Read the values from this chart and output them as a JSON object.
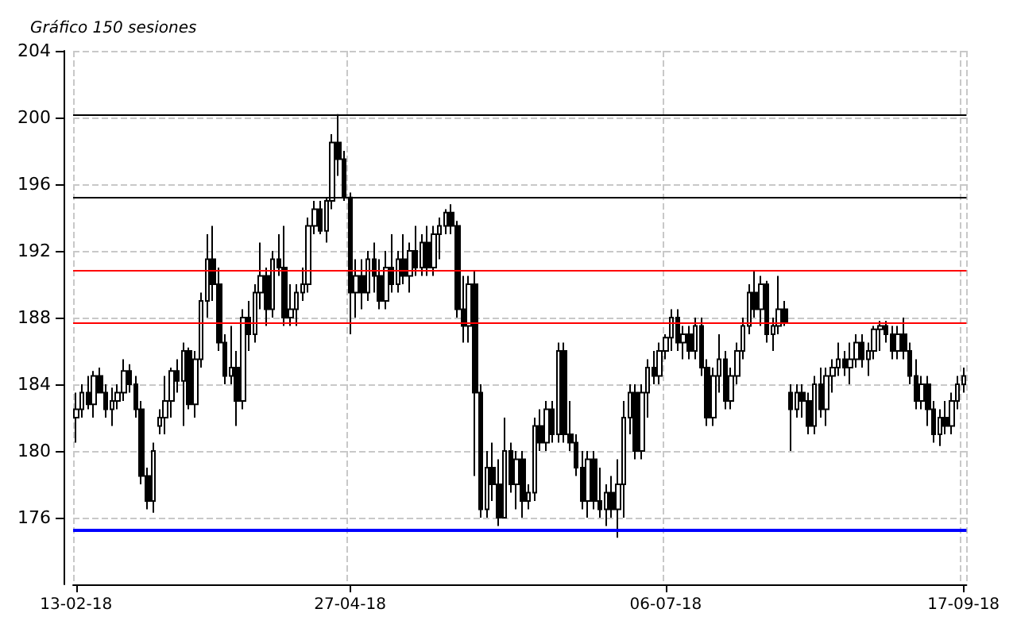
{
  "chart_data": {
    "type": "candlestick",
    "subtitle": "Gráfico 150 sesiones",
    "categories": [
      "13-02-18",
      null,
      null,
      null,
      null,
      null,
      null,
      null,
      null,
      null,
      null,
      null,
      null,
      null,
      null,
      null,
      null,
      null,
      null,
      null,
      null,
      null,
      null,
      null,
      null,
      null,
      null,
      null,
      null,
      null,
      null,
      null,
      null,
      null,
      null,
      null,
      null,
      null,
      null,
      null,
      null,
      null,
      null,
      null,
      null,
      null,
      "27-04-18",
      null,
      null,
      null,
      null,
      null,
      null,
      null,
      null,
      null,
      null,
      null,
      null,
      null,
      null,
      null,
      null,
      null,
      null,
      null,
      null,
      null,
      null,
      null,
      null,
      null,
      null,
      null,
      null,
      null,
      null,
      null,
      null,
      null,
      null,
      null,
      null,
      null,
      null,
      null,
      null,
      null,
      null,
      null,
      null,
      null,
      null,
      null,
      null,
      null,
      null,
      null,
      null,
      "06-07-18",
      null,
      null,
      null,
      null,
      null,
      null,
      null,
      null,
      null,
      null,
      null,
      null,
      null,
      null,
      null,
      null,
      null,
      null,
      null,
      null,
      null,
      null,
      null,
      null,
      null,
      null,
      null,
      null,
      null,
      null,
      null,
      null,
      null,
      null,
      null,
      null,
      null,
      null,
      null,
      null,
      null,
      null,
      null,
      null,
      null,
      null,
      null,
      null,
      null,
      "17-09-18"
    ],
    "ohlc": [
      [
        182.0,
        183.5,
        180.5,
        182.5
      ],
      [
        182.5,
        184.0,
        182.0,
        183.5
      ],
      [
        183.5,
        184.5,
        182.5,
        182.8
      ],
      [
        182.8,
        184.8,
        182.0,
        184.5
      ],
      [
        184.5,
        185.0,
        183.5,
        183.5
      ],
      [
        183.5,
        184.0,
        182.0,
        182.5
      ],
      [
        182.5,
        183.8,
        181.5,
        183.0
      ],
      [
        183.0,
        184.0,
        182.5,
        183.5
      ],
      [
        183.5,
        185.5,
        183.0,
        184.8
      ],
      [
        184.8,
        185.2,
        183.5,
        184.0
      ],
      [
        184.0,
        184.5,
        182.0,
        182.5
      ],
      [
        182.5,
        183.0,
        178.0,
        178.5
      ],
      [
        178.5,
        179.0,
        176.5,
        177.0
      ],
      [
        177.0,
        180.5,
        176.3,
        180.0
      ],
      [
        181.5,
        182.5,
        181.0,
        182.0
      ],
      [
        182.0,
        184.5,
        181.0,
        183.0
      ],
      [
        183.0,
        185.0,
        182.0,
        184.8
      ],
      [
        184.8,
        185.5,
        183.5,
        184.2
      ],
      [
        184.2,
        186.5,
        181.5,
        186.0
      ],
      [
        186.0,
        186.2,
        182.5,
        182.8
      ],
      [
        182.8,
        186.0,
        182.0,
        185.5
      ],
      [
        185.5,
        189.5,
        185.0,
        189.0
      ],
      [
        189.0,
        193.0,
        188.0,
        191.5
      ],
      [
        191.5,
        193.5,
        189.0,
        190.0
      ],
      [
        190.0,
        191.0,
        186.0,
        186.5
      ],
      [
        186.5,
        187.0,
        184.0,
        184.5
      ],
      [
        184.5,
        187.5,
        184.0,
        185.0
      ],
      [
        185.0,
        186.0,
        181.5,
        183.0
      ],
      [
        183.0,
        188.5,
        182.5,
        188.0
      ],
      [
        188.0,
        189.0,
        186.0,
        187.0
      ],
      [
        187.0,
        190.0,
        186.5,
        189.5
      ],
      [
        189.5,
        192.5,
        188.5,
        190.5
      ],
      [
        190.5,
        191.0,
        187.5,
        188.5
      ],
      [
        188.5,
        192.0,
        188.0,
        191.5
      ],
      [
        191.5,
        193.0,
        190.5,
        191.0
      ],
      [
        191.0,
        193.5,
        187.5,
        188.0
      ],
      [
        188.0,
        190.0,
        187.5,
        188.5
      ],
      [
        188.5,
        190.0,
        187.5,
        189.5
      ],
      [
        189.5,
        191.0,
        189.0,
        190.0
      ],
      [
        190.0,
        194.0,
        189.5,
        193.5
      ],
      [
        193.5,
        195.0,
        193.0,
        194.5
      ],
      [
        194.5,
        195.0,
        193.0,
        193.2
      ],
      [
        193.2,
        195.2,
        192.5,
        195.0
      ],
      [
        195.0,
        199.0,
        194.5,
        198.5
      ],
      [
        198.5,
        200.2,
        196.5,
        197.5
      ],
      [
        197.5,
        198.0,
        195.0,
        195.2
      ],
      [
        195.2,
        195.5,
        187.0,
        189.5
      ],
      [
        189.5,
        191.5,
        188.0,
        190.5
      ],
      [
        190.5,
        191.5,
        188.5,
        189.5
      ],
      [
        189.5,
        192.0,
        189.0,
        191.5
      ],
      [
        191.5,
        192.5,
        189.5,
        190.5
      ],
      [
        190.5,
        191.5,
        188.5,
        189.0
      ],
      [
        189.0,
        192.0,
        188.5,
        191.0
      ],
      [
        191.0,
        193.0,
        189.5,
        190.0
      ],
      [
        190.0,
        192.0,
        189.5,
        191.5
      ],
      [
        191.5,
        193.0,
        190.0,
        190.5
      ],
      [
        190.5,
        192.5,
        189.5,
        192.0
      ],
      [
        192.0,
        193.5,
        190.5,
        191.0
      ],
      [
        191.0,
        193.0,
        190.5,
        192.5
      ],
      [
        192.5,
        193.5,
        190.5,
        191.0
      ],
      [
        191.0,
        193.5,
        190.5,
        193.0
      ],
      [
        193.0,
        194.0,
        191.5,
        193.5
      ],
      [
        193.5,
        194.5,
        193.0,
        194.3
      ],
      [
        194.3,
        194.8,
        193.0,
        193.5
      ],
      [
        193.5,
        193.8,
        188.0,
        188.5
      ],
      [
        188.5,
        190.5,
        186.5,
        187.5
      ],
      [
        187.5,
        190.5,
        186.5,
        190.0
      ],
      [
        190.0,
        190.8,
        178.5,
        183.5
      ],
      [
        183.5,
        184.0,
        176.0,
        176.5
      ],
      [
        176.5,
        180.0,
        176.0,
        179.0
      ],
      [
        179.0,
        180.5,
        177.0,
        178.0
      ],
      [
        178.0,
        179.5,
        175.5,
        176.0
      ],
      [
        176.0,
        182.0,
        176.0,
        180.0
      ],
      [
        180.0,
        180.5,
        177.5,
        178.0
      ],
      [
        178.0,
        180.0,
        176.5,
        179.5
      ],
      [
        179.5,
        180.0,
        176.0,
        177.0
      ],
      [
        177.0,
        178.0,
        176.5,
        177.5
      ],
      [
        177.5,
        182.0,
        177.0,
        181.5
      ],
      [
        181.5,
        182.5,
        180.0,
        180.5
      ],
      [
        180.5,
        183.0,
        180.0,
        182.5
      ],
      [
        182.5,
        183.0,
        180.5,
        181.0
      ],
      [
        181.0,
        186.5,
        180.5,
        186.0
      ],
      [
        186.0,
        186.5,
        180.5,
        181.0
      ],
      [
        181.0,
        183.0,
        180.0,
        180.5
      ],
      [
        180.5,
        181.0,
        178.5,
        179.0
      ],
      [
        179.0,
        180.0,
        176.5,
        177.0
      ],
      [
        177.0,
        180.0,
        176.0,
        179.5
      ],
      [
        179.5,
        180.0,
        176.5,
        177.0
      ],
      [
        177.0,
        179.0,
        176.0,
        176.5
      ],
      [
        176.5,
        178.0,
        175.5,
        177.5
      ],
      [
        177.5,
        178.5,
        176.0,
        176.5
      ],
      [
        176.5,
        179.5,
        174.8,
        178.0
      ],
      [
        178.0,
        183.0,
        176.0,
        182.0
      ],
      [
        182.0,
        184.0,
        181.0,
        183.5
      ],
      [
        183.5,
        184.0,
        179.5,
        180.0
      ],
      [
        180.0,
        184.0,
        179.5,
        183.5
      ],
      [
        183.5,
        185.5,
        182.0,
        185.0
      ],
      [
        185.0,
        186.0,
        184.0,
        184.5
      ],
      [
        184.5,
        186.5,
        184.0,
        186.0
      ],
      [
        186.0,
        187.0,
        185.5,
        186.8
      ],
      [
        186.8,
        188.5,
        186.0,
        188.0
      ],
      [
        188.0,
        188.5,
        186.0,
        186.5
      ],
      [
        186.5,
        187.5,
        185.5,
        187.0
      ],
      [
        187.0,
        187.5,
        185.5,
        186.0
      ],
      [
        186.0,
        188.0,
        185.5,
        187.5
      ],
      [
        187.5,
        188.0,
        184.5,
        185.0
      ],
      [
        185.0,
        185.5,
        181.5,
        182.0
      ],
      [
        182.0,
        185.0,
        181.5,
        184.5
      ],
      [
        184.5,
        187.0,
        183.5,
        185.5
      ],
      [
        185.5,
        186.0,
        182.5,
        183.0
      ],
      [
        183.0,
        185.0,
        182.5,
        184.5
      ],
      [
        184.5,
        186.5,
        184.0,
        186.0
      ],
      [
        186.0,
        188.0,
        185.5,
        187.5
      ],
      [
        187.5,
        190.0,
        187.0,
        189.5
      ],
      [
        189.5,
        190.8,
        188.0,
        188.5
      ],
      [
        188.5,
        190.5,
        187.5,
        190.0
      ],
      [
        190.0,
        190.2,
        186.5,
        187.0
      ],
      [
        187.0,
        188.0,
        186.0,
        187.5
      ],
      [
        187.5,
        190.5,
        187.0,
        188.5
      ],
      [
        188.5,
        189.0,
        187.5,
        187.7
      ],
      [
        183.5,
        184.0,
        180.0,
        182.5
      ],
      [
        182.5,
        184.0,
        182.0,
        183.5
      ],
      [
        183.5,
        184.0,
        182.0,
        183.0
      ],
      [
        183.0,
        183.5,
        181.0,
        181.5
      ],
      [
        181.5,
        184.5,
        181.0,
        184.0
      ],
      [
        184.0,
        185.0,
        182.0,
        182.5
      ],
      [
        182.5,
        185.0,
        181.5,
        184.5
      ],
      [
        184.5,
        185.5,
        183.5,
        185.0
      ],
      [
        185.0,
        186.5,
        184.5,
        185.5
      ],
      [
        185.5,
        186.0,
        184.5,
        185.0
      ],
      [
        185.0,
        186.5,
        184.0,
        185.5
      ],
      [
        185.5,
        187.0,
        185.0,
        186.5
      ],
      [
        186.5,
        187.0,
        185.0,
        185.5
      ],
      [
        185.5,
        186.5,
        184.5,
        186.0
      ],
      [
        186.0,
        187.5,
        185.5,
        187.3
      ],
      [
        187.3,
        187.8,
        186.0,
        187.5
      ],
      [
        187.5,
        187.8,
        186.5,
        187.0
      ],
      [
        187.0,
        187.5,
        185.5,
        186.0
      ],
      [
        186.0,
        187.5,
        185.5,
        187.0
      ],
      [
        187.0,
        188.0,
        185.5,
        186.0
      ],
      [
        186.0,
        186.5,
        184.0,
        184.5
      ],
      [
        184.5,
        185.5,
        182.5,
        183.0
      ],
      [
        183.0,
        184.5,
        182.5,
        184.0
      ],
      [
        184.0,
        184.5,
        181.5,
        182.5
      ],
      [
        182.5,
        183.0,
        180.5,
        181.0
      ],
      [
        181.0,
        182.5,
        180.3,
        182.0
      ],
      [
        182.0,
        183.0,
        181.0,
        181.5
      ],
      [
        181.5,
        183.5,
        181.0,
        183.0
      ],
      [
        183.0,
        184.5,
        182.5,
        184.0
      ],
      [
        184.0,
        185.0,
        183.5,
        184.5
      ]
    ],
    "ylim": [
      172,
      204
    ],
    "yticks": [
      176,
      180,
      184,
      188,
      192,
      196,
      200,
      204
    ],
    "grid": true,
    "ref_lines": [
      {
        "axis": "y",
        "value": 200.2,
        "color": "#000000"
      },
      {
        "axis": "y",
        "value": 195.2,
        "color": "#000000"
      },
      {
        "axis": "y",
        "value": 190.8,
        "color": "#ff0000"
      },
      {
        "axis": "y",
        "value": 187.7,
        "color": "#ff0000"
      },
      {
        "axis": "y",
        "value": 175.3,
        "color": "#0000ff"
      }
    ]
  }
}
